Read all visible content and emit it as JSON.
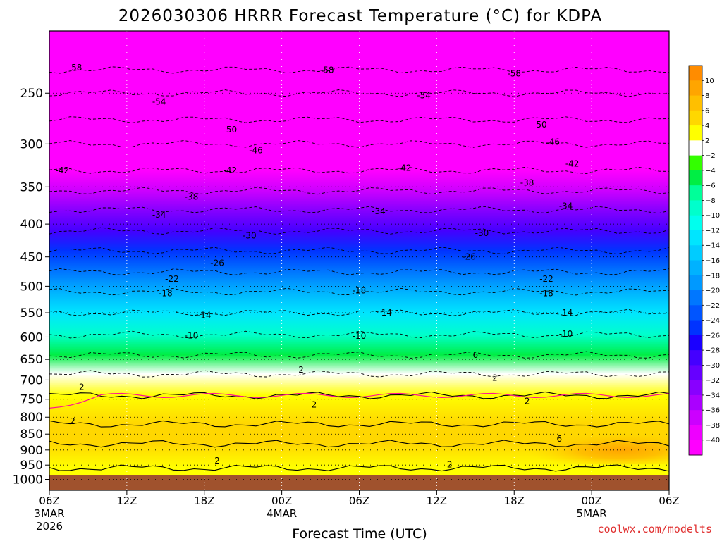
{
  "chart_data": {
    "type": "heatmap",
    "title": "2026030306 HRRR Forecast Temperature (°C) for KDPA",
    "xlabel": "Forecast Time (UTC)",
    "credit": "coolwx.com/modelts",
    "credit_color": "#e03030",
    "y_scale": "log-pressure",
    "y_inverted": true,
    "ylim": [
      1040,
      200
    ],
    "y_ticks": [
      250,
      300,
      350,
      400,
      450,
      500,
      550,
      600,
      650,
      700,
      750,
      800,
      850,
      900,
      950,
      1000
    ],
    "x_hours_range": [
      0,
      48
    ],
    "x_ticks": [
      {
        "hour": 0,
        "label": "06Z",
        "sub1": "3MAR",
        "sub2": "2026"
      },
      {
        "hour": 6,
        "label": "12Z",
        "sub1": "",
        "sub2": ""
      },
      {
        "hour": 12,
        "label": "18Z",
        "sub1": "",
        "sub2": ""
      },
      {
        "hour": 18,
        "label": "00Z",
        "sub1": "4MAR",
        "sub2": ""
      },
      {
        "hour": 24,
        "label": "06Z",
        "sub1": "",
        "sub2": ""
      },
      {
        "hour": 30,
        "label": "12Z",
        "sub1": "",
        "sub2": ""
      },
      {
        "hour": 36,
        "label": "18Z",
        "sub1": "",
        "sub2": ""
      },
      {
        "hour": 42,
        "label": "00Z",
        "sub1": "5MAR",
        "sub2": ""
      },
      {
        "hour": 48,
        "label": "06Z",
        "sub1": "",
        "sub2": ""
      }
    ],
    "grid": true,
    "ground_pressure_hpa": 1000,
    "ground_color": "#a0522d",
    "colorbar": {
      "placement": "right",
      "levels": [
        10,
        8,
        6,
        4,
        2,
        -2,
        -4,
        -6,
        -8,
        -10,
        -12,
        -14,
        -16,
        -18,
        -20,
        -22,
        -24,
        -26,
        -28,
        -30,
        -32,
        -34,
        -36,
        -38,
        -40
      ],
      "colors": [
        "#ff8c00",
        "#ffa500",
        "#ffbf00",
        "#ffd700",
        "#ffff00",
        "#ffffff",
        "#33ff00",
        "#00ee44",
        "#00ff99",
        "#00ffcc",
        "#00ffee",
        "#00e5ff",
        "#00ccff",
        "#00b2ff",
        "#0099ff",
        "#0077ff",
        "#0055ff",
        "#0033ff",
        "#1a00ff",
        "#4400ff",
        "#6600ff",
        "#8800ff",
        "#aa00ff",
        "#cc00ff",
        "#ee00ff",
        "#ff00ff"
      ]
    },
    "temperature_profile": [
      {
        "pressure": 200,
        "temp_c": -60
      },
      {
        "pressure": 230,
        "temp_c": -58
      },
      {
        "pressure": 250,
        "temp_c": -55
      },
      {
        "pressure": 275,
        "temp_c": -51
      },
      {
        "pressure": 300,
        "temp_c": -46
      },
      {
        "pressure": 330,
        "temp_c": -42
      },
      {
        "pressure": 355,
        "temp_c": -38
      },
      {
        "pressure": 380,
        "temp_c": -34
      },
      {
        "pressure": 410,
        "temp_c": -30
      },
      {
        "pressure": 440,
        "temp_c": -26
      },
      {
        "pressure": 475,
        "temp_c": -22
      },
      {
        "pressure": 510,
        "temp_c": -18
      },
      {
        "pressure": 550,
        "temp_c": -14
      },
      {
        "pressure": 595,
        "temp_c": -10
      },
      {
        "pressure": 640,
        "temp_c": -6
      },
      {
        "pressure": 685,
        "temp_c": -2
      },
      {
        "pressure": 740,
        "temp_c": 2
      },
      {
        "pressure": 820,
        "temp_c": 4
      },
      {
        "pressure": 880,
        "temp_c": 5
      },
      {
        "pressure": 960,
        "temp_c": 2
      },
      {
        "pressure": 1000,
        "temp_c": 3
      }
    ],
    "warm_core": {
      "hour_start": 37,
      "hour_end": 48,
      "pressure_top": 850,
      "pressure_bottom": 945,
      "temp_c": 6
    },
    "contour_labels": [
      {
        "hour": 2,
        "pressure": 228,
        "text": "-58"
      },
      {
        "hour": 21.5,
        "pressure": 230,
        "text": "-58"
      },
      {
        "hour": 36,
        "pressure": 233,
        "text": "-58"
      },
      {
        "hour": 8.5,
        "pressure": 258,
        "text": "-54"
      },
      {
        "hour": 29,
        "pressure": 252,
        "text": "-54"
      },
      {
        "hour": 14,
        "pressure": 285,
        "text": "-50"
      },
      {
        "hour": 38,
        "pressure": 280,
        "text": "-50"
      },
      {
        "hour": 16,
        "pressure": 307,
        "text": "-46"
      },
      {
        "hour": 39,
        "pressure": 298,
        "text": "-46"
      },
      {
        "hour": 1,
        "pressure": 330,
        "text": "-42"
      },
      {
        "hour": 14,
        "pressure": 330,
        "text": "-42"
      },
      {
        "hour": 27.5,
        "pressure": 327,
        "text": "-42"
      },
      {
        "hour": 40.5,
        "pressure": 322,
        "text": "-42"
      },
      {
        "hour": 11,
        "pressure": 363,
        "text": "-38"
      },
      {
        "hour": 37,
        "pressure": 345,
        "text": "-38"
      },
      {
        "hour": 8.5,
        "pressure": 387,
        "text": "-34"
      },
      {
        "hour": 25.5,
        "pressure": 382,
        "text": "-34"
      },
      {
        "hour": 40,
        "pressure": 375,
        "text": "-34"
      },
      {
        "hour": 15.5,
        "pressure": 417,
        "text": "-30"
      },
      {
        "hour": 33.5,
        "pressure": 413,
        "text": "-30"
      },
      {
        "hour": 13,
        "pressure": 460,
        "text": "-26"
      },
      {
        "hour": 32.5,
        "pressure": 450,
        "text": "-26"
      },
      {
        "hour": 9.5,
        "pressure": 487,
        "text": "-22"
      },
      {
        "hour": 38.5,
        "pressure": 487,
        "text": "-22"
      },
      {
        "hour": 9,
        "pressure": 513,
        "text": "-18"
      },
      {
        "hour": 24,
        "pressure": 508,
        "text": "-18"
      },
      {
        "hour": 38.5,
        "pressure": 513,
        "text": "-18"
      },
      {
        "hour": 12,
        "pressure": 555,
        "text": "-14"
      },
      {
        "hour": 26,
        "pressure": 550,
        "text": "-14"
      },
      {
        "hour": 40,
        "pressure": 550,
        "text": "-14"
      },
      {
        "hour": 11,
        "pressure": 597,
        "text": "-10"
      },
      {
        "hour": 24,
        "pressure": 598,
        "text": "-10"
      },
      {
        "hour": 40,
        "pressure": 593,
        "text": "-10"
      },
      {
        "hour": 33,
        "pressure": 640,
        "text": "6"
      },
      {
        "hour": 19.5,
        "pressure": 675,
        "text": "2"
      },
      {
        "hour": 2.5,
        "pressure": 718,
        "text": "2"
      },
      {
        "hour": 34.5,
        "pressure": 695,
        "text": "2"
      },
      {
        "hour": 20.5,
        "pressure": 765,
        "text": "2"
      },
      {
        "hour": 37,
        "pressure": 755,
        "text": "2"
      },
      {
        "hour": 1.8,
        "pressure": 812,
        "text": "2"
      },
      {
        "hour": 39.5,
        "pressure": 865,
        "text": "6"
      },
      {
        "hour": 13,
        "pressure": 935,
        "text": "2"
      },
      {
        "hour": 31,
        "pressure": 948,
        "text": "2"
      }
    ]
  }
}
